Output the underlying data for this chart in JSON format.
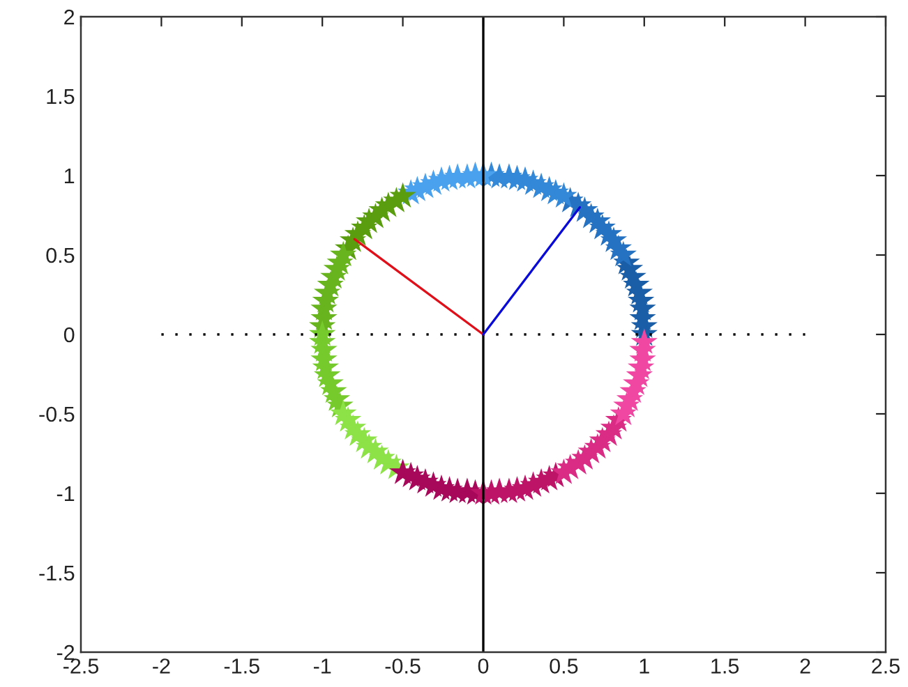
{
  "chart_data": {
    "type": "scatter",
    "xlim": [
      -2.5,
      2.5
    ],
    "xticks": [
      -2.5,
      -2,
      -1.5,
      -1,
      -0.5,
      0,
      0.5,
      1,
      1.5,
      2,
      2.5
    ],
    "ylim": [
      -2,
      2
    ],
    "yticks": [
      -2,
      -1.5,
      -1,
      -0.5,
      0,
      0.5,
      1,
      1.5,
      2
    ],
    "series": [
      {
        "marker": "star",
        "color": "#1b5ea8",
        "x": [
          1.0,
          1.0,
          0.99,
          0.99,
          0.98,
          0.97,
          0.95,
          0.93,
          0.91,
          0.89
        ],
        "values": [
          0.0,
          0.05,
          0.1,
          0.16,
          0.21,
          0.26,
          0.31,
          0.36,
          0.41,
          0.45
        ]
      },
      {
        "marker": "star",
        "color": "#2672c2",
        "x": [
          0.87,
          0.84,
          0.81,
          0.78,
          0.74,
          0.71,
          0.67,
          0.63,
          0.59,
          0.54
        ],
        "values": [
          0.5,
          0.54,
          0.59,
          0.63,
          0.67,
          0.71,
          0.74,
          0.78,
          0.81,
          0.84
        ]
      },
      {
        "marker": "star",
        "color": "#3388d8",
        "x": [
          0.5,
          0.45,
          0.41,
          0.36,
          0.31,
          0.26,
          0.21,
          0.16,
          0.1,
          0.05
        ],
        "values": [
          0.87,
          0.89,
          0.91,
          0.93,
          0.95,
          0.97,
          0.98,
          0.99,
          0.99,
          1.0
        ]
      },
      {
        "marker": "star",
        "color": "#4aa2ee",
        "x": [
          0.0,
          -0.05,
          -0.1,
          -0.16,
          -0.21,
          -0.26,
          -0.31,
          -0.36,
          -0.41,
          -0.45
        ],
        "values": [
          1.0,
          1.0,
          0.99,
          0.99,
          0.98,
          0.97,
          0.95,
          0.93,
          0.91,
          0.89
        ]
      },
      {
        "marker": "star",
        "color": "#5a9e10",
        "x": [
          -0.5,
          -0.54,
          -0.59,
          -0.63,
          -0.67,
          -0.71,
          -0.74,
          -0.78,
          -0.81,
          -0.84
        ],
        "values": [
          0.87,
          0.84,
          0.81,
          0.78,
          0.74,
          0.71,
          0.67,
          0.63,
          0.59,
          0.54
        ]
      },
      {
        "marker": "star",
        "color": "#68b41e",
        "x": [
          -0.87,
          -0.89,
          -0.91,
          -0.93,
          -0.95,
          -0.97,
          -0.98,
          -0.99,
          -0.99,
          -1.0
        ],
        "values": [
          0.5,
          0.45,
          0.41,
          0.36,
          0.31,
          0.26,
          0.21,
          0.16,
          0.1,
          0.05
        ]
      },
      {
        "marker": "star",
        "color": "#76ca2c",
        "x": [
          -1.0,
          -1.0,
          -0.99,
          -0.99,
          -0.98,
          -0.97,
          -0.95,
          -0.93,
          -0.91,
          -0.89
        ],
        "values": [
          0.0,
          -0.05,
          -0.1,
          -0.16,
          -0.21,
          -0.26,
          -0.31,
          -0.36,
          -0.41,
          -0.45
        ]
      },
      {
        "marker": "star",
        "color": "#8ce246",
        "x": [
          -0.87,
          -0.84,
          -0.81,
          -0.78,
          -0.74,
          -0.71,
          -0.67,
          -0.63,
          -0.59,
          -0.54
        ],
        "values": [
          -0.5,
          -0.54,
          -0.59,
          -0.63,
          -0.67,
          -0.71,
          -0.74,
          -0.78,
          -0.81,
          -0.84
        ]
      },
      {
        "marker": "star",
        "color": "#a8085a",
        "x": [
          -0.5,
          -0.45,
          -0.41,
          -0.36,
          -0.31,
          -0.26,
          -0.21,
          -0.16,
          -0.1,
          -0.05
        ],
        "values": [
          -0.87,
          -0.89,
          -0.91,
          -0.93,
          -0.95,
          -0.97,
          -0.98,
          -0.99,
          -0.99,
          -1.0
        ]
      },
      {
        "marker": "star",
        "color": "#be1468",
        "x": [
          0.0,
          0.05,
          0.1,
          0.16,
          0.21,
          0.26,
          0.31,
          0.36,
          0.41,
          0.45
        ],
        "values": [
          -1.0,
          -1.0,
          -0.99,
          -0.99,
          -0.98,
          -0.97,
          -0.95,
          -0.93,
          -0.91,
          -0.89
        ]
      },
      {
        "marker": "star",
        "color": "#da2c84",
        "x": [
          0.5,
          0.54,
          0.59,
          0.63,
          0.67,
          0.71,
          0.74,
          0.78,
          0.81,
          0.84
        ],
        "values": [
          -0.87,
          -0.84,
          -0.81,
          -0.78,
          -0.74,
          -0.71,
          -0.67,
          -0.63,
          -0.59,
          -0.54
        ]
      },
      {
        "marker": "star",
        "color": "#f048a2",
        "x": [
          0.87,
          0.89,
          0.91,
          0.93,
          0.95,
          0.97,
          0.98,
          0.99,
          0.99,
          1.0
        ],
        "values": [
          -0.5,
          -0.45,
          -0.41,
          -0.36,
          -0.31,
          -0.26,
          -0.21,
          -0.16,
          -0.1,
          -0.05
        ]
      },
      {
        "type": "line",
        "color": "#000000",
        "line_style": "dotted",
        "x": [
          -2,
          2
        ],
        "values": [
          0,
          0
        ]
      },
      {
        "type": "line",
        "color": "#000000",
        "x": [
          0,
          0
        ],
        "values": [
          -2,
          2
        ]
      },
      {
        "type": "line",
        "color": "#e0101a",
        "x": [
          0,
          -0.8
        ],
        "values": [
          0,
          0.6
        ]
      },
      {
        "type": "line",
        "color": "#0a0ad8",
        "x": [
          0,
          0.6
        ],
        "values": [
          0,
          0.8
        ]
      }
    ]
  }
}
